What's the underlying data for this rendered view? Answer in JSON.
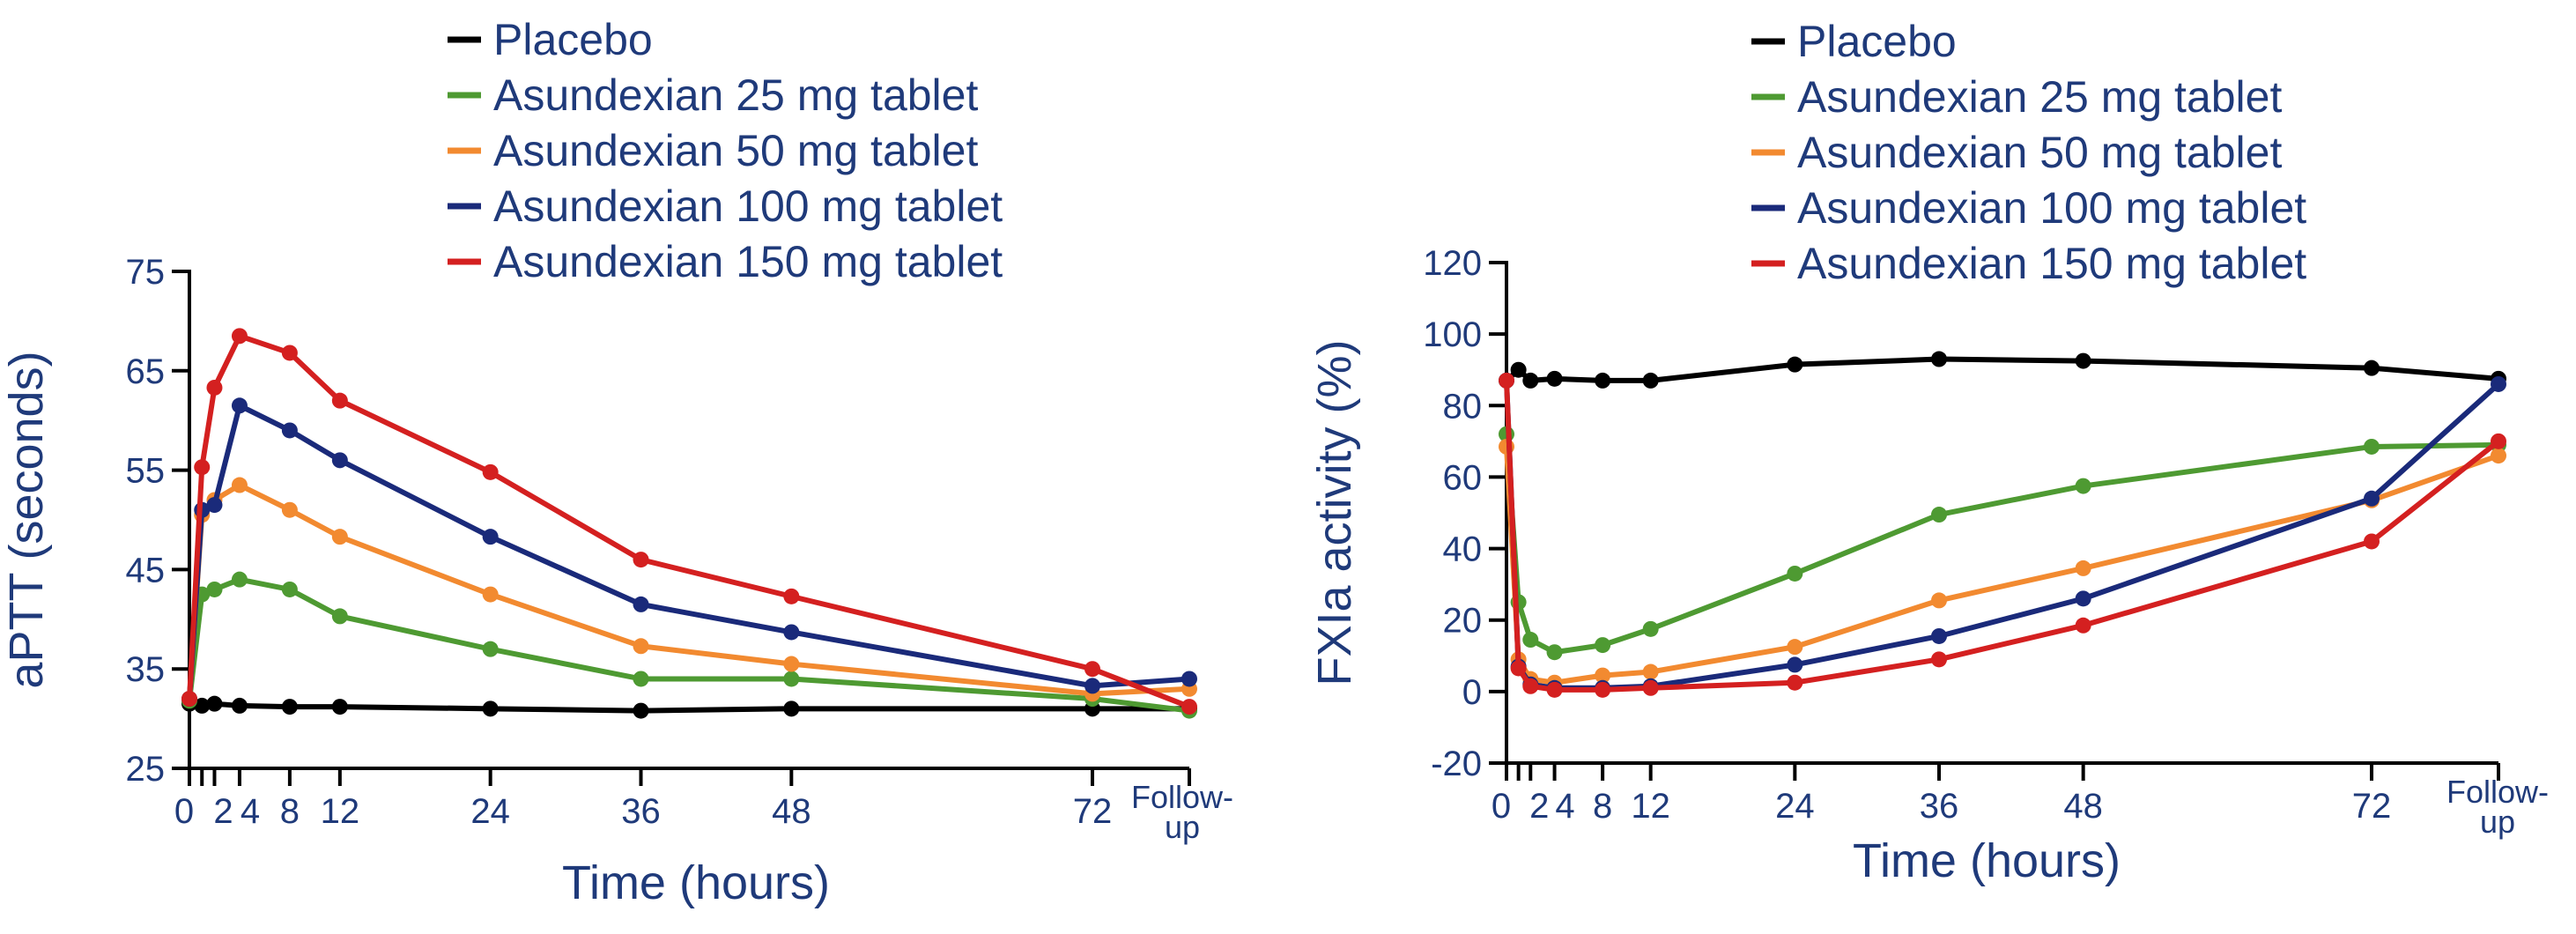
{
  "chart_data": [
    {
      "type": "line",
      "title": "",
      "xlabel": "Time (hours)",
      "ylabel": "aPTT (seconds)",
      "ylim": [
        25,
        75
      ],
      "yticks": [
        25,
        35,
        45,
        55,
        65,
        75
      ],
      "xticks": [
        "0",
        "2",
        "4",
        "8",
        "12",
        "24",
        "36",
        "48",
        "72",
        "Follow-up"
      ],
      "x": [
        0,
        1,
        2,
        4,
        8,
        12,
        24,
        36,
        48,
        72,
        "Follow-up"
      ],
      "grid": false,
      "legend": "top",
      "series": [
        {
          "name": "Placebo",
          "color": "#000000",
          "values": [
            31.5,
            31.3,
            31.5,
            31.3,
            31.2,
            31.2,
            31.0,
            30.8,
            31.0,
            31.0,
            31.0
          ]
        },
        {
          "name": "Asundexian 25 mg tablet",
          "color": "#4e9a32",
          "values": [
            31.8,
            42.5,
            43.0,
            44.0,
            43.0,
            40.3,
            37.0,
            34.0,
            34.0,
            32.0,
            30.8
          ]
        },
        {
          "name": "Asundexian 50 mg tablet",
          "color": "#f28a30",
          "values": [
            32.0,
            50.5,
            52.0,
            53.5,
            51.0,
            48.3,
            42.5,
            37.3,
            35.5,
            32.5,
            33.0
          ]
        },
        {
          "name": "Asundexian 100 mg tablet",
          "color": "#1a2a7a",
          "values": [
            32.0,
            51.0,
            51.5,
            61.5,
            59.0,
            56.0,
            48.3,
            41.5,
            38.7,
            33.3,
            34.0
          ]
        },
        {
          "name": "Asundexian 150 mg tablet",
          "color": "#d42020",
          "values": [
            32.0,
            55.3,
            63.3,
            68.5,
            66.8,
            62.0,
            54.8,
            46.0,
            42.3,
            35.0,
            31.2
          ]
        }
      ]
    },
    {
      "type": "line",
      "title": "",
      "xlabel": "Time (hours)",
      "ylabel": "FXIa activity (%)",
      "ylim": [
        -20,
        120
      ],
      "yticks": [
        -20,
        0,
        20,
        40,
        60,
        80,
        100,
        120
      ],
      "xticks": [
        "0",
        "2",
        "4",
        "8",
        "12",
        "24",
        "36",
        "48",
        "72",
        "Follow-up"
      ],
      "x": [
        0,
        1,
        2,
        4,
        8,
        12,
        24,
        36,
        48,
        72,
        "Follow-up"
      ],
      "grid": false,
      "legend": "top",
      "series": [
        {
          "name": "Placebo",
          "color": "#000000",
          "values": [
            87,
            90,
            87,
            87.5,
            87,
            87,
            91.5,
            93,
            92.5,
            90.5,
            87.5
          ]
        },
        {
          "name": "Asundexian 25 mg tablet",
          "color": "#4e9a32",
          "values": [
            72,
            25,
            14.5,
            11,
            13,
            17.5,
            33,
            49.5,
            57.5,
            68.5,
            69
          ]
        },
        {
          "name": "Asundexian 50 mg tablet",
          "color": "#f28a30",
          "values": [
            68.5,
            9,
            3.5,
            2.5,
            4.5,
            5.5,
            12.5,
            25.5,
            34.5,
            53.5,
            66
          ]
        },
        {
          "name": "Asundexian 100 mg tablet",
          "color": "#1a2a7a",
          "values": [
            87,
            7,
            2,
            1,
            1,
            1.5,
            7.5,
            15.5,
            26,
            54,
            86
          ]
        },
        {
          "name": "Asundexian 150 mg tablet",
          "color": "#d42020",
          "values": [
            87,
            6.5,
            1.5,
            0.5,
            0.5,
            1,
            2.5,
            9,
            18.5,
            42,
            70
          ]
        }
      ]
    }
  ]
}
